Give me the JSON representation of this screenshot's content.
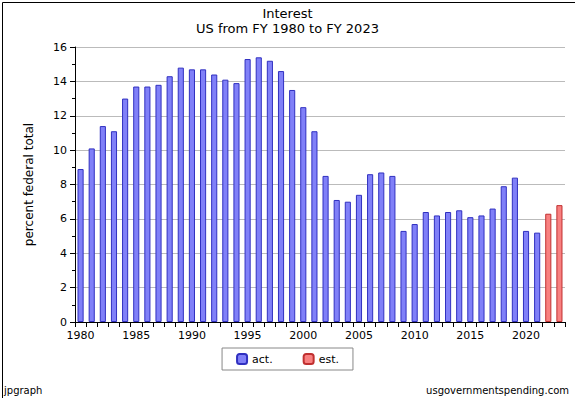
{
  "chart_data": {
    "type": "bar",
    "title": "Interest",
    "subtitle": "US from FY 1980 to FY 2023",
    "y_label": "percent federal total",
    "categories": [
      "1980",
      null,
      null,
      null,
      null,
      "1985",
      null,
      null,
      null,
      null,
      "1990",
      null,
      null,
      null,
      null,
      "1995",
      null,
      null,
      null,
      null,
      "2000",
      null,
      null,
      null,
      null,
      "2005",
      null,
      null,
      null,
      null,
      "2010",
      null,
      null,
      null,
      null,
      "2015",
      null,
      null,
      null,
      null,
      "2020",
      null,
      null,
      null
    ],
    "series": [
      {
        "name": "act.",
        "color": "#8080f8",
        "values": [
          8.9,
          10.1,
          11.4,
          11.1,
          13.0,
          13.7,
          13.7,
          13.8,
          14.3,
          14.8,
          14.7,
          14.7,
          14.4,
          14.1,
          13.9,
          15.3,
          15.4,
          15.2,
          14.6,
          13.5,
          12.5,
          11.1,
          8.5,
          7.1,
          7.0,
          7.4,
          8.6,
          8.7,
          8.5,
          5.3,
          5.7,
          6.4,
          6.2,
          6.4,
          6.5,
          6.1,
          6.2,
          6.6,
          7.9,
          8.4,
          5.3,
          5.2,
          null,
          null
        ]
      },
      {
        "name": "est.",
        "color": "#f88080",
        "values": [
          null,
          null,
          null,
          null,
          null,
          null,
          null,
          null,
          null,
          null,
          null,
          null,
          null,
          null,
          null,
          null,
          null,
          null,
          null,
          null,
          null,
          null,
          null,
          null,
          null,
          null,
          null,
          null,
          null,
          null,
          null,
          null,
          null,
          null,
          null,
          null,
          null,
          null,
          null,
          null,
          null,
          null,
          6.3,
          6.8
        ]
      }
    ],
    "ylim": [
      0,
      16
    ],
    "yticks": [
      0,
      2,
      4,
      6,
      8,
      10,
      12,
      14,
      16
    ],
    "grid": true,
    "legend": "bottom",
    "annotations": [
      "jpgraph",
      "usgovernmentspending.com"
    ]
  }
}
